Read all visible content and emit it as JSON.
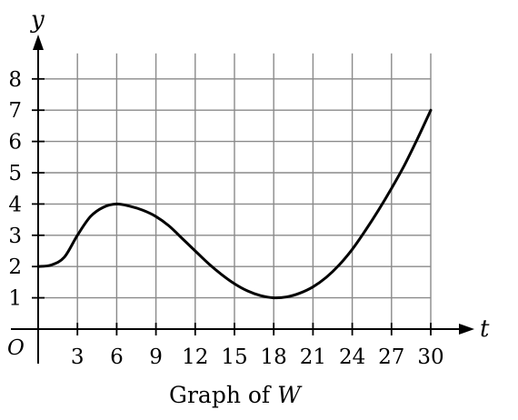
{
  "chart_data": {
    "type": "line",
    "xlabel": "t",
    "ylabel": "y",
    "origin_label": "O",
    "caption": {
      "prefix": "Graph of ",
      "var": "W"
    },
    "xlim": [
      0,
      30
    ],
    "ylim": [
      0,
      8
    ],
    "xticks": [
      3,
      6,
      9,
      12,
      15,
      18,
      21,
      24,
      27,
      30
    ],
    "yticks": [
      1,
      2,
      3,
      4,
      5,
      6,
      7,
      8
    ],
    "grid": true,
    "series": [
      {
        "x": [
          0,
          1,
          2,
          3,
          4,
          5,
          6,
          7,
          8,
          9,
          10,
          11,
          12,
          13,
          14,
          15,
          16,
          17,
          18,
          19,
          20,
          21,
          22,
          23,
          24,
          25,
          26,
          27,
          28,
          29,
          30
        ],
        "y": [
          2,
          2.05,
          2.3,
          3.0,
          3.6,
          3.9,
          4.0,
          3.93,
          3.8,
          3.6,
          3.3,
          2.9,
          2.5,
          2.1,
          1.75,
          1.45,
          1.22,
          1.07,
          1.0,
          1.03,
          1.15,
          1.35,
          1.65,
          2.05,
          2.55,
          3.15,
          3.8,
          4.5,
          5.25,
          6.1,
          7.0
        ]
      }
    ]
  }
}
